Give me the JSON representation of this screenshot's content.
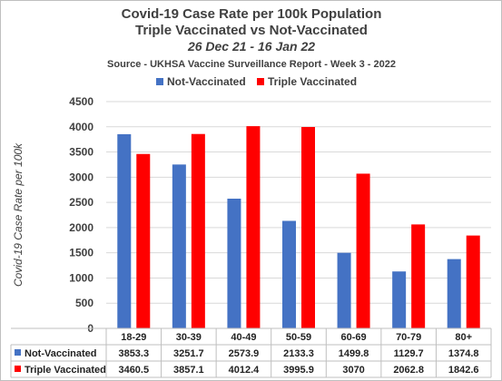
{
  "chart_data": {
    "type": "bar",
    "title": "Covid-19 Case Rate per 100k Population",
    "title_line2": "Triple Vaccinated vs Not-Vaccinated",
    "subtitle": "26 Dec 21 - 16 Jan 22",
    "source": "Source - UKHSA Vaccine Surveillance Report - Week 3 - 2022",
    "ylabel": "Covid-19 Case Rate per 100k",
    "xlabel": "",
    "ylim": [
      0,
      4500
    ],
    "ytick_step": 500,
    "grid": true,
    "legend_position": "top",
    "data_table": true,
    "categories": [
      "18-29",
      "30-39",
      "40-49",
      "50-59",
      "60-69",
      "70-79",
      "80+"
    ],
    "series": [
      {
        "name": "Not-Vaccinated",
        "color": "#4472c4",
        "values": [
          3853.3,
          3251.7,
          2573.9,
          2133.3,
          1499.8,
          1129.7,
          1374.8
        ],
        "labels": [
          "3853.3",
          "3251.7",
          "2573.9",
          "2133.3",
          "1499.8",
          "1129.7",
          "1374.8"
        ]
      },
      {
        "name": "Triple Vaccinated",
        "color": "#ff0000",
        "values": [
          3460.5,
          3857.1,
          4012.4,
          3995.9,
          3070,
          2062.8,
          1842.6
        ],
        "labels": [
          "3460.5",
          "3857.1",
          "4012.4",
          "3995.9",
          "3070",
          "2062.8",
          "1842.6"
        ]
      }
    ]
  }
}
